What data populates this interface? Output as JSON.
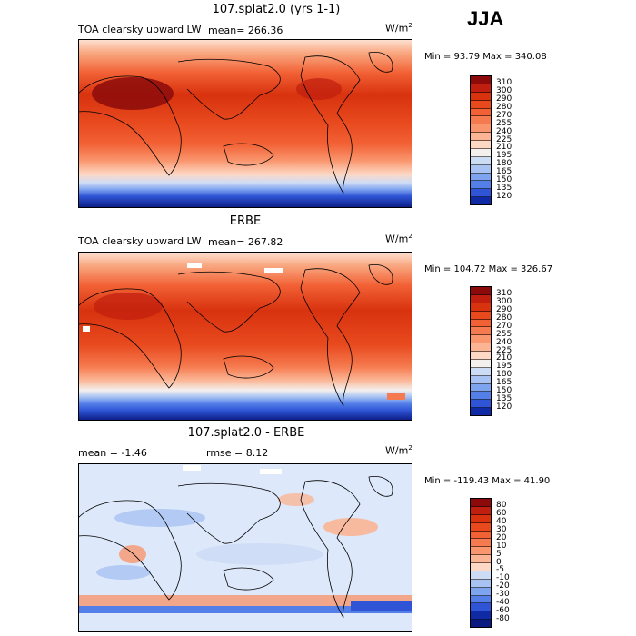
{
  "season": "JJA",
  "panels": [
    {
      "title": "107.splat2.0 (yrs 1-1)",
      "variable": "TOA clearsky upward LW",
      "mean_label": "mean= 266.36",
      "units": "W/m",
      "units_sup": "2",
      "minmax": "Min =  93.79 Max = 340.08",
      "colorbar_labels": [
        "310",
        "300",
        "290",
        "280",
        "270",
        "255",
        "240",
        "225",
        "210",
        "195",
        "180",
        "165",
        "150",
        "135",
        "120"
      ],
      "colorbar_colors": [
        "#8c0a0a",
        "#c01e0e",
        "#d8320f",
        "#e84a1e",
        "#f26135",
        "#f67a4f",
        "#f9966e",
        "#fbb595",
        "#fdd8c4",
        "#f4f0ee",
        "#cddcf5",
        "#a7c2f3",
        "#7ea3ef",
        "#557fe8",
        "#2f55d6",
        "#102aa6"
      ]
    },
    {
      "title": "ERBE",
      "variable": "TOA clearsky upward LW",
      "mean_label": "mean= 267.82",
      "units": "W/m",
      "units_sup": "2",
      "minmax": "Min = 104.72 Max = 326.67",
      "colorbar_labels": [
        "310",
        "300",
        "290",
        "280",
        "270",
        "255",
        "240",
        "225",
        "210",
        "195",
        "180",
        "165",
        "150",
        "135",
        "120"
      ],
      "colorbar_colors": [
        "#8c0a0a",
        "#c01e0e",
        "#d8320f",
        "#e84a1e",
        "#f26135",
        "#f67a4f",
        "#f9966e",
        "#fbb595",
        "#fdd8c4",
        "#f4f0ee",
        "#cddcf5",
        "#a7c2f3",
        "#7ea3ef",
        "#557fe8",
        "#2f55d6",
        "#102aa6"
      ]
    },
    {
      "title": "107.splat2.0 - ERBE",
      "mean_label": "mean =   -1.46",
      "rmse_label": "rmse =    8.12",
      "units": "W/m",
      "units_sup": "2",
      "minmax": "Min = -119.43 Max =  41.90",
      "colorbar_labels": [
        "80",
        "60",
        "40",
        "30",
        "20",
        "10",
        "5",
        "0",
        "-5",
        "-10",
        "-20",
        "-30",
        "-40",
        "-60",
        "-80"
      ],
      "colorbar_colors": [
        "#8c0a0a",
        "#c01e0e",
        "#d8320f",
        "#e84a1e",
        "#f26135",
        "#f67a4f",
        "#f9966e",
        "#fbb595",
        "#fdd8c4",
        "#cddcf5",
        "#a7c2f3",
        "#7ea3ef",
        "#557fe8",
        "#2f55d6",
        "#102aa6",
        "#0a1a80"
      ]
    }
  ]
}
